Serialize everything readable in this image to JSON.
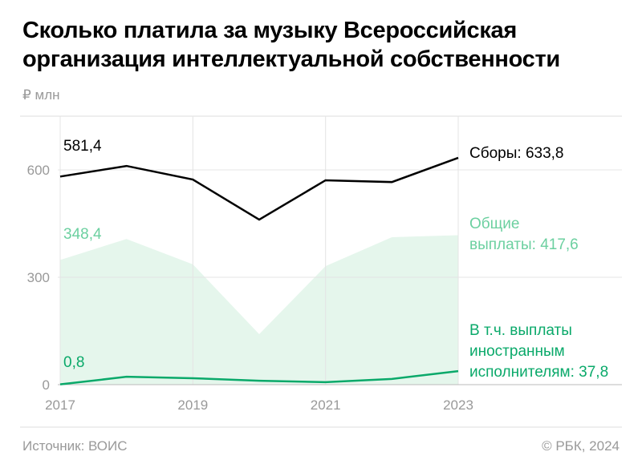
{
  "chart_data": {
    "type": "line",
    "title": "Сколько платила за музыку Всероссийская организация интеллектуальной собственности",
    "y_unit": "₽ млн",
    "source": "Источник: ВОИС",
    "credit": "© РБК, 2024",
    "x": [
      2017,
      2018,
      2019,
      2020,
      2021,
      2022,
      2023
    ],
    "xlim": [
      2017,
      2023
    ],
    "xticks": [
      2017,
      2019,
      2021,
      2023
    ],
    "ylim": [
      0,
      750
    ],
    "yticks": [
      0,
      300,
      600
    ],
    "grid": true,
    "series": [
      {
        "kind": "line",
        "color": "#000000",
        "label_color": "#000000",
        "values": [
          581.4,
          611,
          573,
          461,
          571,
          566,
          633.8
        ],
        "value_labels": [
          "581,4",
          null,
          null,
          null,
          null,
          null,
          "Сборы: 633,8"
        ]
      },
      {
        "kind": "area",
        "color": "#e5f6ec",
        "label_color": "#6cd0a0",
        "values": [
          348.4,
          407,
          336,
          141,
          331,
          412,
          417.6
        ],
        "value_labels": [
          "348,4",
          null,
          null,
          null,
          null,
          null,
          "Общие\nвыплаты: 417,6"
        ]
      },
      {
        "kind": "line",
        "color": "#0aa96a",
        "label_color": "#0aa96a",
        "values": [
          0.8,
          22,
          18,
          11,
          7,
          16,
          37.8
        ],
        "value_labels": [
          "0,8",
          null,
          null,
          null,
          null,
          null,
          "В т.ч. выплаты\nиностранным\nисполнителям: 37,8"
        ]
      }
    ]
  }
}
